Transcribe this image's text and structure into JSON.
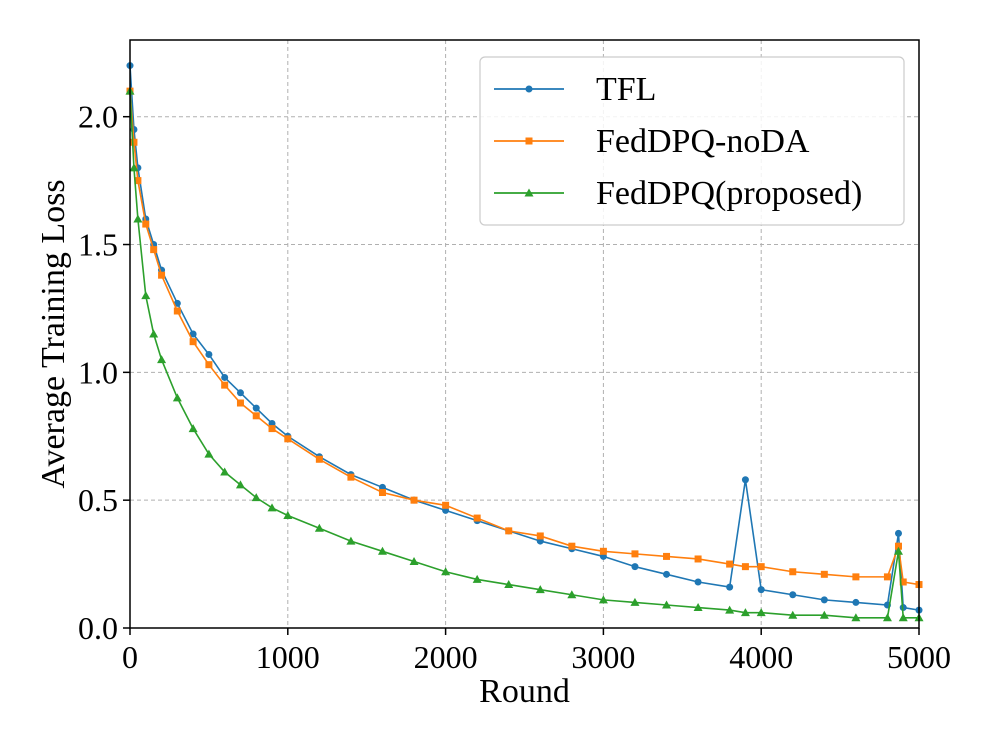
{
  "chart_data": {
    "type": "line",
    "title": "",
    "xlabel": "Round",
    "ylabel": "Average Training Loss",
    "xlim": [
      0,
      5000
    ],
    "ylim": [
      0,
      2.3
    ],
    "xticks": [
      0,
      1000,
      2000,
      3000,
      4000,
      5000
    ],
    "xtick_labels": [
      "0",
      "1000",
      "2000",
      "3000",
      "4000",
      "5000"
    ],
    "yticks": [
      0.0,
      0.5,
      1.0,
      1.5,
      2.0
    ],
    "ytick_labels": [
      "0.0",
      "0.5",
      "1.0",
      "1.5",
      "2.0"
    ],
    "grid": true,
    "legend_position": "top-right",
    "x": [
      0,
      25,
      50,
      100,
      150,
      200,
      300,
      400,
      500,
      600,
      700,
      800,
      900,
      1000,
      1200,
      1400,
      1600,
      1800,
      2000,
      2200,
      2400,
      2600,
      2800,
      3000,
      3200,
      3400,
      3600,
      3800,
      3900,
      4000,
      4200,
      4400,
      4600,
      4800,
      4870,
      4900,
      5000
    ],
    "series": [
      {
        "name": "TFL",
        "color": "#1f77b4",
        "marker": "circle",
        "values": [
          2.2,
          1.95,
          1.8,
          1.6,
          1.5,
          1.4,
          1.27,
          1.15,
          1.07,
          0.98,
          0.92,
          0.86,
          0.8,
          0.75,
          0.67,
          0.6,
          0.55,
          0.5,
          0.46,
          0.42,
          0.38,
          0.34,
          0.31,
          0.28,
          0.24,
          0.21,
          0.18,
          0.16,
          0.58,
          0.15,
          0.13,
          0.11,
          0.1,
          0.09,
          0.37,
          0.08,
          0.07
        ]
      },
      {
        "name": "FedDPQ-noDA",
        "color": "#ff7f0e",
        "marker": "square",
        "values": [
          2.1,
          1.9,
          1.75,
          1.58,
          1.48,
          1.38,
          1.24,
          1.12,
          1.03,
          0.95,
          0.88,
          0.83,
          0.78,
          0.74,
          0.66,
          0.59,
          0.53,
          0.5,
          0.48,
          0.43,
          0.38,
          0.36,
          0.32,
          0.3,
          0.29,
          0.28,
          0.27,
          0.25,
          0.24,
          0.24,
          0.22,
          0.21,
          0.2,
          0.2,
          0.32,
          0.18,
          0.17
        ]
      },
      {
        "name": "FedDPQ(proposed)",
        "color": "#2ca02c",
        "marker": "triangle",
        "values": [
          2.1,
          1.8,
          1.6,
          1.3,
          1.15,
          1.05,
          0.9,
          0.78,
          0.68,
          0.61,
          0.56,
          0.51,
          0.47,
          0.44,
          0.39,
          0.34,
          0.3,
          0.26,
          0.22,
          0.19,
          0.17,
          0.15,
          0.13,
          0.11,
          0.1,
          0.09,
          0.08,
          0.07,
          0.06,
          0.06,
          0.05,
          0.05,
          0.04,
          0.04,
          0.3,
          0.04,
          0.04
        ]
      }
    ]
  }
}
